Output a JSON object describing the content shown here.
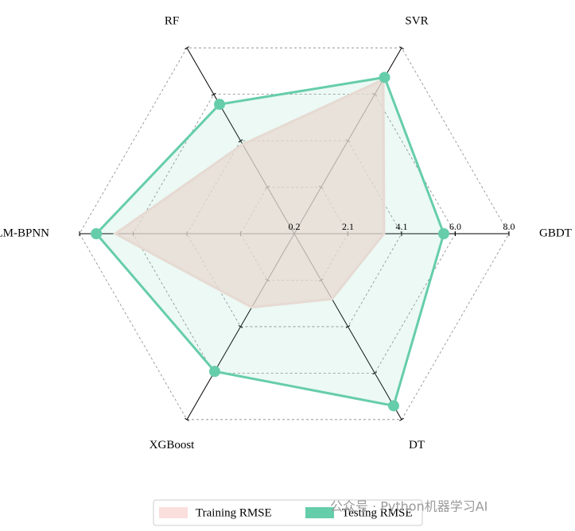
{
  "chart_data": {
    "type": "radar",
    "categories": [
      "GBDT",
      "SVR",
      "RF",
      "LM-BPNN",
      "XGBoost",
      "DT"
    ],
    "series": [
      {
        "name": "Training RMSE",
        "color": "#f9dcd8",
        "values": [
          3.46,
          6.67,
          3.95,
          6.7,
          3.29,
          2.94
        ]
      },
      {
        "name": "Testing RMSE",
        "color": "#66cdaa",
        "values": [
          5.63,
          6.76,
          5.63,
          7.39,
          5.98,
          7.42
        ]
      }
    ],
    "ylim": [
      0.2,
      8.0
    ],
    "yticks": [
      0.2,
      {
        "value": 2.15,
        "label": "2.1"
      },
      4.1,
      {
        "value": 6.05,
        "label": "6.0"
      },
      {
        "value": 8.0,
        "label": "8.0"
      }
    ],
    "grid": true,
    "legend": "bottom",
    "watermark": "公众号 · Python机器学习AI"
  }
}
